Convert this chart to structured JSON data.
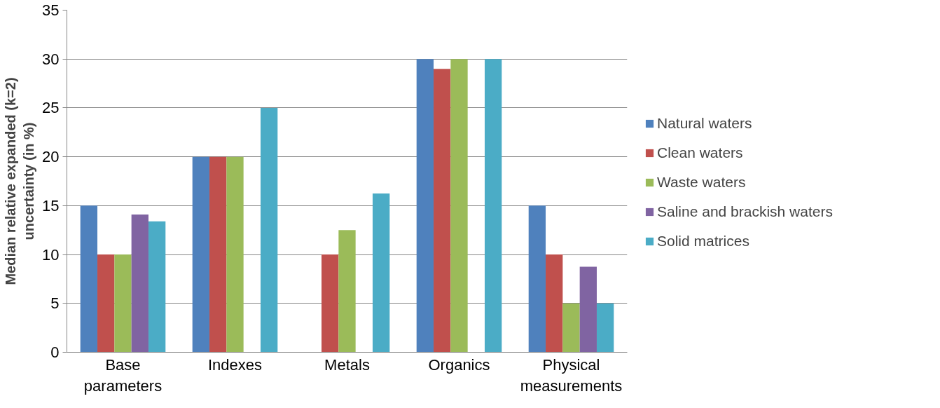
{
  "chart_data": {
    "type": "bar",
    "ylabel": "Median relative expanded (k=2) uncertainty (in %)",
    "categories": [
      "Base parameters",
      "Indexes",
      "Metals",
      "Organics",
      "Physical measurements"
    ],
    "series": [
      {
        "name": "Natural waters",
        "color": "#4f81bd",
        "values": [
          15,
          20,
          null,
          30,
          15
        ]
      },
      {
        "name": "Clean waters",
        "color": "#c0504d",
        "values": [
          10,
          20,
          10,
          29,
          10
        ]
      },
      {
        "name": "Waste waters",
        "color": "#9bbb59",
        "values": [
          10,
          20,
          12.5,
          30,
          5
        ]
      },
      {
        "name": "Saline and brackish waters",
        "color": "#8064a2",
        "values": [
          14.1,
          null,
          null,
          null,
          8.75
        ]
      },
      {
        "name": "Solid matrices",
        "color": "#4bacc6",
        "values": [
          13.4,
          25,
          16.25,
          30,
          5
        ]
      }
    ],
    "ylim": [
      0,
      35
    ],
    "yticks": [
      0,
      5,
      10,
      15,
      20,
      25,
      30,
      35
    ],
    "grid": "y",
    "legend": "right"
  }
}
